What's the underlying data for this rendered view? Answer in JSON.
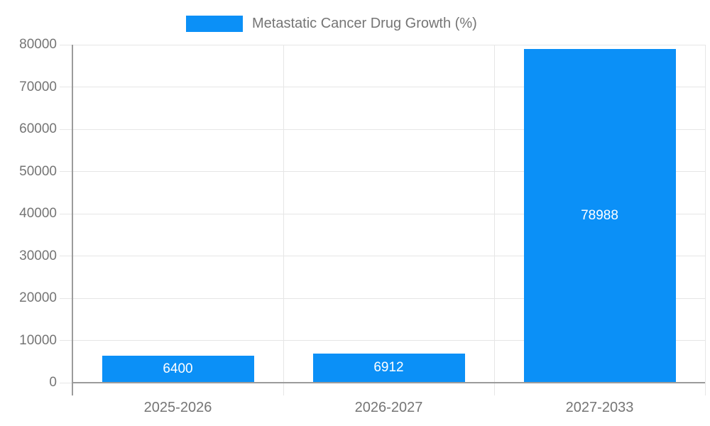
{
  "legend": {
    "label": "Metastatic Cancer Drug Growth (%)"
  },
  "chart_data": {
    "type": "bar",
    "title": "Metastatic Cancer Drug Growth (%)",
    "categories": [
      "2025-2026",
      "2026-2027",
      "2027-2033"
    ],
    "values": [
      6400,
      6912,
      78988
    ],
    "bar_labels": [
      "6400",
      "6912",
      "78988"
    ],
    "xlabel": "",
    "ylabel": "",
    "ylim": [
      0,
      80000
    ],
    "ytick_step": 10000,
    "ytick_labels": [
      "0",
      "10000",
      "20000",
      "30000",
      "40000",
      "50000",
      "60000",
      "70000",
      "80000"
    ],
    "grid": true,
    "legend_position": "top",
    "colors": {
      "bar": "#0b90f7",
      "bar_value_text": "#ffffff",
      "grid": "#e6e6e6",
      "axis": "#9b9b9b",
      "tick_text": "#757575",
      "legend_text": "#757575",
      "background": "#ffffff"
    }
  }
}
